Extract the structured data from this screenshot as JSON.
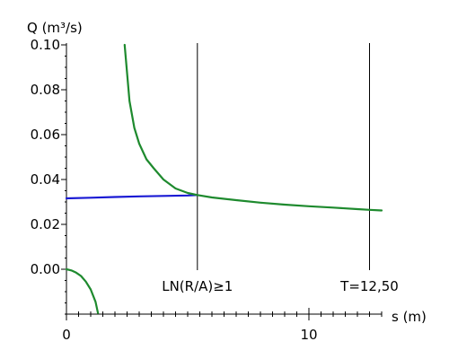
{
  "chart_data": {
    "type": "line",
    "title": "",
    "ylabel": "Q (m³/s)",
    "xlabel": "s (m)",
    "xlim": [
      0,
      13.0
    ],
    "ylim": [
      -0.02,
      0.1
    ],
    "y_ticks": [
      {
        "value": 0.0,
        "label": "0.00"
      },
      {
        "value": 0.02,
        "label": "0.02"
      },
      {
        "value": 0.04,
        "label": "0.04"
      },
      {
        "value": 0.06,
        "label": "0.06"
      },
      {
        "value": 0.08,
        "label": "0.08"
      },
      {
        "value": 0.1,
        "label": "0.10"
      }
    ],
    "x_ticks": [
      {
        "value": 0,
        "label": "0"
      },
      {
        "value": 10,
        "label": "10"
      }
    ],
    "x_minor_tick_step": 0.5,
    "y_minor_tick_step": 0.005,
    "grid": false,
    "vertical_lines": [
      {
        "x": 5.4,
        "label": "LN(R/A)≥1"
      },
      {
        "x": 12.5,
        "label": "T=12,50"
      }
    ],
    "series": [
      {
        "color": "#1a1ad4",
        "x": [
          0,
          1,
          2,
          3,
          4,
          5,
          5.4
        ],
        "y": [
          0.0316,
          0.0319,
          0.0322,
          0.0325,
          0.0327,
          0.0329,
          0.0331
        ]
      },
      {
        "color": "#1e8a2e",
        "x": [
          2.4,
          2.6,
          2.8,
          3.0,
          3.3,
          3.6,
          4.0,
          4.5,
          5.0,
          5.4,
          6,
          7,
          8,
          9,
          10,
          11,
          12,
          12.5,
          13.0
        ],
        "y": [
          0.1,
          0.075,
          0.063,
          0.056,
          0.049,
          0.045,
          0.04,
          0.036,
          0.034,
          0.0331,
          0.032,
          0.0308,
          0.0297,
          0.0288,
          0.0281,
          0.0275,
          0.0268,
          0.0265,
          0.0262
        ]
      },
      {
        "color": "#1e8a2e",
        "x": [
          0,
          0.2,
          0.4,
          0.6,
          0.8,
          1.0,
          1.2,
          1.3
        ],
        "y": [
          0.0,
          -0.0005,
          -0.0015,
          -0.003,
          -0.0055,
          -0.009,
          -0.0145,
          -0.0195
        ]
      }
    ]
  }
}
